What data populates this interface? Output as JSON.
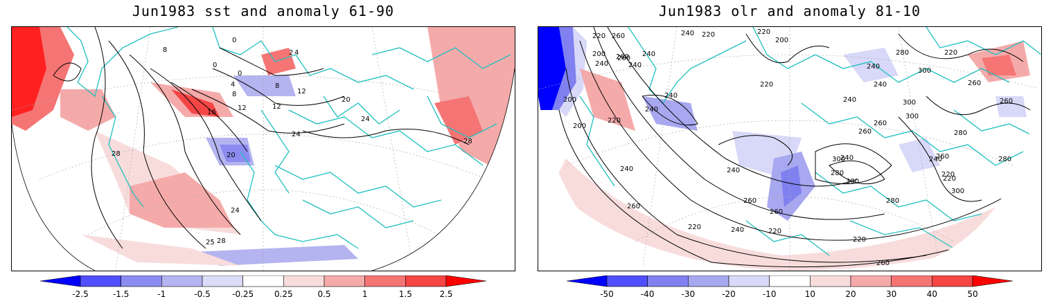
{
  "panels": [
    {
      "title": "Jun1983 sst and anomaly 61-90",
      "contour_labels": [
        "0",
        "0",
        "8",
        "4",
        "4",
        "2",
        "0",
        "8",
        "8",
        "12",
        "12",
        "12",
        "16",
        "20",
        "20",
        "24",
        "24",
        "24",
        "28",
        "28",
        "25",
        "28"
      ],
      "colorbar": {
        "levels": [
          "-2.5",
          "-1.5",
          "-1",
          "-0.5",
          "-0.25",
          "0.25",
          "0.5",
          "1",
          "1.5",
          "2.5"
        ],
        "colors": [
          "#0000ff",
          "#4f4fff",
          "#8c8cf0",
          "#b4b4f0",
          "#dcdcf8",
          "#ffffff",
          "#f8dcdc",
          "#f5aaaa",
          "#f57575",
          "#f54545",
          "#ff0000"
        ]
      }
    },
    {
      "title": "Jun1983 olr and anomaly 81-10",
      "contour_labels": [
        "220",
        "240",
        "220",
        "220",
        "240",
        "260",
        "200",
        "260",
        "240",
        "240",
        "220",
        "240",
        "200",
        "240",
        "200",
        "220",
        "280",
        "300",
        "200",
        "240",
        "260",
        "240",
        "240",
        "220",
        "240",
        "260",
        "300",
        "300",
        "260",
        "280",
        "260",
        "240",
        "260",
        "300",
        "300",
        "240",
        "280",
        "220",
        "240",
        "260",
        "280",
        "220",
        "260",
        "260",
        "220",
        "220",
        "240",
        "220",
        "260",
        "280",
        "300",
        "260"
      ],
      "colorbar": {
        "levels": [
          "-50",
          "-40",
          "-30",
          "-20",
          "-10",
          "10",
          "20",
          "30",
          "40",
          "50"
        ],
        "colors": [
          "#0000ff",
          "#4f4fff",
          "#8080f0",
          "#a8a8f0",
          "#d8d8f8",
          "#ffffff",
          "#f8dcdc",
          "#f5aaaa",
          "#f57575",
          "#f54545",
          "#ff0000"
        ]
      }
    }
  ],
  "colors": {
    "coast": "#1fbfbf",
    "contour": "#000000",
    "frame": "#000000"
  }
}
